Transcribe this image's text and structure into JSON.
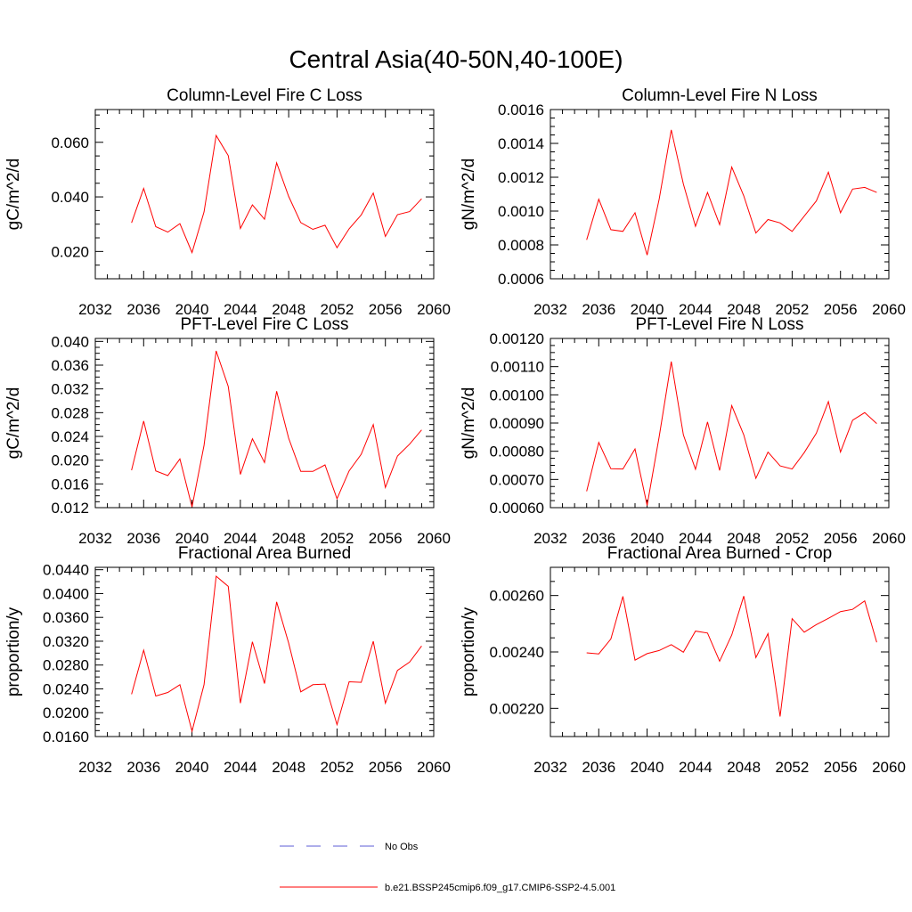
{
  "suptitle": "Central Asia(40-50N,40-100E)",
  "chart_data": [
    {
      "type": "line",
      "title": "Column-Level Fire C Loss",
      "ylabel": "gC/m^2/d",
      "xlim": [
        2032,
        2060
      ],
      "xticks": [
        2032,
        2036,
        2040,
        2044,
        2048,
        2052,
        2056,
        2060
      ],
      "ylim": [
        0.01,
        0.072
      ],
      "yticks": [
        "0.020",
        "0.040",
        "0.060"
      ],
      "x": [
        2035,
        2036,
        2037,
        2038,
        2039,
        2040,
        2041,
        2042,
        2043,
        2044,
        2045,
        2046,
        2047,
        2048,
        2049,
        2050,
        2051,
        2052,
        2053,
        2054,
        2055,
        2056,
        2057,
        2058,
        2059
      ],
      "series": [
        {
          "name": "b.e21.BSSP245cmip6.f09_g17.CMIP6-SSP2-4.5.001",
          "values": [
            0.0305,
            0.0431,
            0.0291,
            0.0271,
            0.0302,
            0.0196,
            0.0345,
            0.0625,
            0.0551,
            0.0284,
            0.0371,
            0.0318,
            0.0525,
            0.0402,
            0.0306,
            0.0281,
            0.0296,
            0.0214,
            0.0283,
            0.0334,
            0.0414,
            0.0255,
            0.0335,
            0.0346,
            0.0393
          ]
        }
      ]
    },
    {
      "type": "line",
      "title": "Column-Level Fire N Loss",
      "ylabel": "gN/m^2/d",
      "xlim": [
        2032,
        2060
      ],
      "xticks": [
        2032,
        2036,
        2040,
        2044,
        2048,
        2052,
        2056,
        2060
      ],
      "ylim": [
        0.0006,
        0.0016
      ],
      "yticks": [
        "0.0006",
        "0.0008",
        "0.0010",
        "0.0012",
        "0.0014",
        "0.0016"
      ],
      "x": [
        2035,
        2036,
        2037,
        2038,
        2039,
        2040,
        2041,
        2042,
        2043,
        2044,
        2045,
        2046,
        2047,
        2048,
        2049,
        2050,
        2051,
        2052,
        2053,
        2054,
        2055,
        2056,
        2057,
        2058,
        2059
      ],
      "series": [
        {
          "name": "b.e21.BSSP245cmip6.f09_g17.CMIP6-SSP2-4.5.001",
          "values": [
            0.00083,
            0.00107,
            0.00089,
            0.00088,
            0.00099,
            0.00074,
            0.00107,
            0.00148,
            0.00116,
            0.00091,
            0.00111,
            0.00092,
            0.00126,
            0.00109,
            0.00087,
            0.00095,
            0.00093,
            0.00088,
            0.00097,
            0.00106,
            0.00123,
            0.00099,
            0.00113,
            0.00114,
            0.00111
          ]
        }
      ]
    },
    {
      "type": "line",
      "title": "PFT-Level Fire C Loss",
      "ylabel": "gC/m^2/d",
      "xlim": [
        2032,
        2060
      ],
      "xticks": [
        2032,
        2036,
        2040,
        2044,
        2048,
        2052,
        2056,
        2060
      ],
      "ylim": [
        0.012,
        0.0405
      ],
      "yticks": [
        "0.012",
        "0.016",
        "0.020",
        "0.024",
        "0.028",
        "0.032",
        "0.036",
        "0.040"
      ],
      "x": [
        2035,
        2036,
        2037,
        2038,
        2039,
        2040,
        2041,
        2042,
        2043,
        2044,
        2045,
        2046,
        2047,
        2048,
        2049,
        2050,
        2051,
        2052,
        2053,
        2054,
        2055,
        2056,
        2057,
        2058,
        2059
      ],
      "series": [
        {
          "name": "b.e21.BSSP245cmip6.f09_g17.CMIP6-SSP2-4.5.001",
          "values": [
            0.0183,
            0.0266,
            0.0182,
            0.0174,
            0.0202,
            0.0121,
            0.0225,
            0.0384,
            0.0324,
            0.0176,
            0.0236,
            0.0196,
            0.0316,
            0.0237,
            0.0181,
            0.0181,
            0.0192,
            0.0135,
            0.0182,
            0.021,
            0.026,
            0.0154,
            0.0207,
            0.0227,
            0.0251
          ]
        }
      ]
    },
    {
      "type": "line",
      "title": "PFT-Level Fire N Loss",
      "ylabel": "gN/m^2/d",
      "xlim": [
        2032,
        2060
      ],
      "xticks": [
        2032,
        2036,
        2040,
        2044,
        2048,
        2052,
        2056,
        2060
      ],
      "ylim": [
        0.0006,
        0.0012
      ],
      "yticks": [
        "0.00060",
        "0.00070",
        "0.00080",
        "0.00090",
        "0.00100",
        "0.00110",
        "0.00120"
      ],
      "x": [
        2035,
        2036,
        2037,
        2038,
        2039,
        2040,
        2041,
        2042,
        2043,
        2044,
        2045,
        2046,
        2047,
        2048,
        2049,
        2050,
        2051,
        2052,
        2053,
        2054,
        2055,
        2056,
        2057,
        2058,
        2059
      ],
      "series": [
        {
          "name": "b.e21.BSSP245cmip6.f09_g17.CMIP6-SSP2-4.5.001",
          "values": [
            0.000658,
            0.000831,
            0.000738,
            0.000737,
            0.000808,
            0.000608,
            0.000851,
            0.001118,
            0.000858,
            0.000736,
            0.000904,
            0.000732,
            0.000962,
            0.000858,
            0.000704,
            0.000797,
            0.000748,
            0.000737,
            0.000795,
            0.000864,
            0.000976,
            0.000797,
            0.00091,
            0.000937,
            0.000898
          ]
        }
      ]
    },
    {
      "type": "line",
      "title": "Fractional Area Burned",
      "ylabel": "proportion/y",
      "xlim": [
        2032,
        2060
      ],
      "xticks": [
        2032,
        2036,
        2040,
        2044,
        2048,
        2052,
        2056,
        2060
      ],
      "ylim": [
        0.016,
        0.0444
      ],
      "yticks": [
        "0.0160",
        "0.0200",
        "0.0240",
        "0.0280",
        "0.0320",
        "0.0360",
        "0.0400",
        "0.0440"
      ],
      "x": [
        2035,
        2036,
        2037,
        2038,
        2039,
        2040,
        2041,
        2042,
        2043,
        2044,
        2045,
        2046,
        2047,
        2048,
        2049,
        2050,
        2051,
        2052,
        2053,
        2054,
        2055,
        2056,
        2057,
        2058,
        2059
      ],
      "series": [
        {
          "name": "b.e21.BSSP245cmip6.f09_g17.CMIP6-SSP2-4.5.001",
          "values": [
            0.0231,
            0.0305,
            0.0228,
            0.0234,
            0.0247,
            0.0169,
            0.0247,
            0.0429,
            0.0412,
            0.0216,
            0.0319,
            0.0249,
            0.0386,
            0.0317,
            0.0235,
            0.0247,
            0.0248,
            0.018,
            0.0252,
            0.0251,
            0.032,
            0.0216,
            0.0271,
            0.0285,
            0.0312
          ]
        }
      ]
    },
    {
      "type": "line",
      "title": "Fractional Area Burned - Crop",
      "ylabel": "proportion/y",
      "xlim": [
        2032,
        2060
      ],
      "xticks": [
        2032,
        2036,
        2040,
        2044,
        2048,
        2052,
        2056,
        2060
      ],
      "ylim": [
        0.0021,
        0.0027
      ],
      "yticks": [
        "0.00220",
        "0.00240",
        "0.00260"
      ],
      "x": [
        2035,
        2036,
        2037,
        2038,
        2039,
        2040,
        2041,
        2042,
        2043,
        2044,
        2045,
        2046,
        2047,
        2048,
        2049,
        2050,
        2051,
        2052,
        2053,
        2054,
        2055,
        2056,
        2057,
        2058,
        2059
      ],
      "series": [
        {
          "name": "b.e21.BSSP245cmip6.f09_g17.CMIP6-SSP2-4.5.001",
          "values": [
            0.002397,
            0.002393,
            0.002446,
            0.002597,
            0.002371,
            0.002394,
            0.002405,
            0.002426,
            0.002399,
            0.002474,
            0.002467,
            0.002367,
            0.00246,
            0.002598,
            0.00238,
            0.002465,
            0.002171,
            0.002518,
            0.00247,
            0.002497,
            0.002519,
            0.002543,
            0.002551,
            0.002581,
            0.002434
          ]
        }
      ]
    }
  ],
  "legend": {
    "items": [
      {
        "label": "No Obs",
        "color": "#5c5cd6",
        "dash": "dashed"
      },
      {
        "label": "b.e21.BSSP245cmip6.f09_g17.CMIP6-SSP2-4.5.001",
        "color": "#ff0000",
        "dash": "solid"
      }
    ]
  }
}
